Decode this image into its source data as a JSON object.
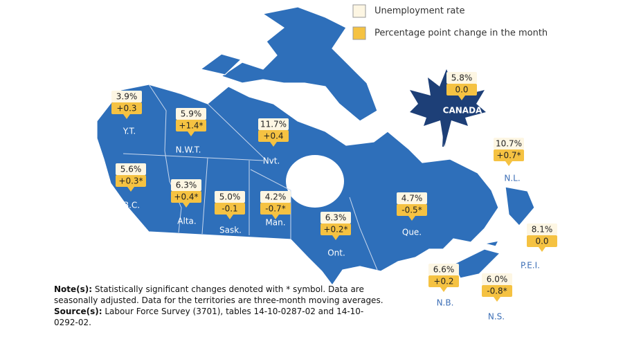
{
  "legend": [
    {
      "label": "Unemployment rate"
    },
    {
      "label": "Percentage point change in the month"
    }
  ],
  "canada": {
    "label": "CANADA",
    "rate": "5.8%",
    "change": "0.0"
  },
  "regions": [
    {
      "name": "Y.T.",
      "rate": "3.9%",
      "change": "+0.3"
    },
    {
      "name": "N.W.T.",
      "rate": "5.9%",
      "change": "+1.4*"
    },
    {
      "name": "Nvt.",
      "rate": "11.7%",
      "change": "+0.4"
    },
    {
      "name": "B.C.",
      "rate": "5.6%",
      "change": "+0.3*"
    },
    {
      "name": "Alta.",
      "rate": "6.3%",
      "change": "+0.4*"
    },
    {
      "name": "Sask.",
      "rate": "5.0%",
      "change": "-0.1"
    },
    {
      "name": "Man.",
      "rate": "4.2%",
      "change": "-0.7*"
    },
    {
      "name": "Ont.",
      "rate": "6.3%",
      "change": "+0.2*"
    },
    {
      "name": "Que.",
      "rate": "4.7%",
      "change": "-0.5*"
    },
    {
      "name": "N.L.",
      "rate": "10.7%",
      "change": "+0.7*"
    },
    {
      "name": "P.E.I.",
      "rate": "8.1%",
      "change": "0.0"
    },
    {
      "name": "N.B.",
      "rate": "6.6%",
      "change": "+0.2"
    },
    {
      "name": "N.S.",
      "rate": "6.0%",
      "change": "-0.8*"
    }
  ],
  "note": {
    "label": "Note(s):",
    "text": "Statistically significant changes denoted with * symbol. Data are seasonally adjusted. Data for the territories are three-month moving averages."
  },
  "source": {
    "label": "Source(s):",
    "text": "Labour Force Survey (3701), tables 14-10-0287-02 and 14-10-0292-02."
  }
}
